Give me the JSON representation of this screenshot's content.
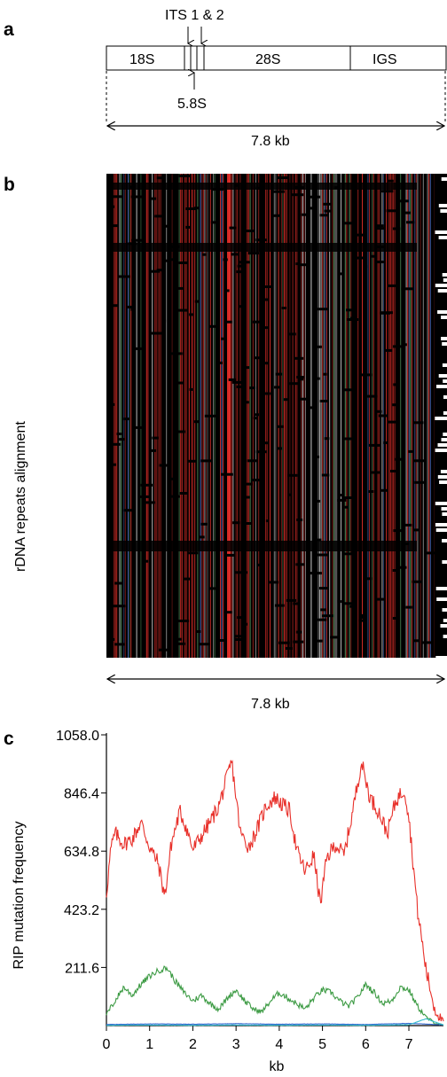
{
  "panel_a": {
    "label": "a",
    "segments": [
      "18S",
      "28S",
      "IGS"
    ],
    "its_label": "ITS 1 & 2",
    "s58_label": "5.8S",
    "length_label": "7.8 kb"
  },
  "panel_b": {
    "label": "b",
    "ylabel": "rDNA repeats alignment",
    "length_label": "7.8 kb",
    "colors": {
      "background": "#000000",
      "rip": "#e8302a",
      "gap": "#ffffff",
      "other_green": "#5fa86a",
      "other_blue": "#4a6ec8"
    }
  },
  "panel_c": {
    "label": "c"
  },
  "chart_data": {
    "type": "line",
    "xlabel": "kb",
    "ylabel": "RIP mutation frequency",
    "xlim": [
      0,
      7.8
    ],
    "ylim": [
      0,
      1058.0
    ],
    "xticks": [
      "0",
      "1",
      "2",
      "3",
      "4",
      "5",
      "6",
      "7"
    ],
    "yticks": [
      "211.6",
      "423.2",
      "634.8",
      "846.4",
      "1058.0"
    ],
    "series": [
      {
        "color": "#e8302a",
        "x": [
          0,
          0.1,
          0.2,
          0.4,
          0.6,
          0.8,
          1.0,
          1.2,
          1.35,
          1.5,
          1.7,
          1.85,
          2.0,
          2.2,
          2.4,
          2.6,
          2.75,
          2.9,
          3.1,
          3.3,
          3.5,
          3.7,
          3.9,
          4.1,
          4.25,
          4.4,
          4.6,
          4.8,
          4.95,
          5.1,
          5.3,
          5.5,
          5.7,
          5.9,
          6.1,
          6.3,
          6.5,
          6.7,
          6.9,
          7.0,
          7.2,
          7.4,
          7.6,
          7.8
        ],
        "y": [
          480,
          640,
          700,
          660,
          680,
          740,
          650,
          590,
          470,
          660,
          780,
          720,
          640,
          690,
          740,
          800,
          880,
          960,
          700,
          650,
          720,
          800,
          830,
          800,
          780,
          640,
          560,
          620,
          440,
          610,
          660,
          620,
          780,
          960,
          830,
          780,
          700,
          820,
          860,
          760,
          420,
          200,
          60,
          10
        ]
      },
      {
        "color": "#3d9b44",
        "x": [
          0,
          0.2,
          0.4,
          0.6,
          0.8,
          1.0,
          1.2,
          1.4,
          1.6,
          1.8,
          2.0,
          2.2,
          2.4,
          2.6,
          2.8,
          3.0,
          3.2,
          3.4,
          3.6,
          3.8,
          4.0,
          4.2,
          4.4,
          4.6,
          4.8,
          5.0,
          5.2,
          5.4,
          5.6,
          5.8,
          6.0,
          6.2,
          6.4,
          6.6,
          6.8,
          7.0,
          7.2,
          7.4,
          7.6,
          7.8
        ],
        "y": [
          40,
          90,
          140,
          110,
          150,
          180,
          200,
          210,
          160,
          120,
          90,
          110,
          80,
          60,
          100,
          130,
          90,
          60,
          50,
          90,
          120,
          100,
          80,
          60,
          100,
          130,
          120,
          90,
          70,
          100,
          150,
          120,
          80,
          90,
          140,
          130,
          70,
          30,
          10,
          0
        ]
      },
      {
        "color": "#3366cc",
        "x": [
          0,
          1,
          2,
          3,
          4,
          5,
          6,
          7,
          7.8
        ],
        "y": [
          4,
          6,
          5,
          7,
          5,
          6,
          4,
          8,
          3
        ]
      },
      {
        "color": "#33bbcc",
        "x": [
          0,
          1,
          2,
          3,
          4,
          5,
          6,
          7,
          7.4,
          7.8
        ],
        "y": [
          1,
          2,
          1,
          2,
          1,
          2,
          1,
          3,
          25,
          2
        ]
      }
    ]
  }
}
